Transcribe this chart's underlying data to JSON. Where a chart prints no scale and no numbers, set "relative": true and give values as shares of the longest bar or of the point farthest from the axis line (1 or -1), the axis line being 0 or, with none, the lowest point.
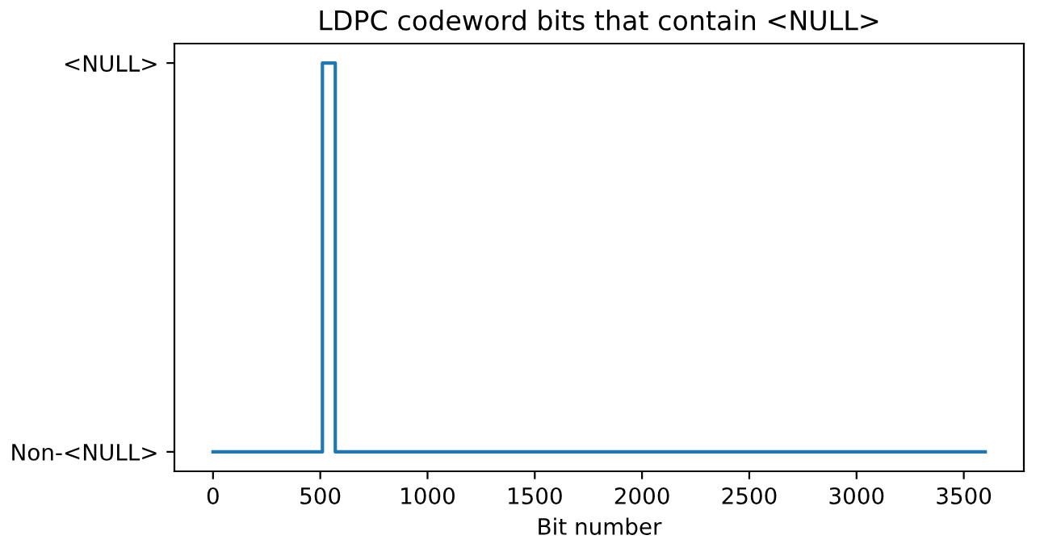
{
  "chart_data": {
    "type": "step",
    "title": "LDPC codeword bits that contain <NULL>",
    "xlabel": "Bit number",
    "x": [
      0,
      510,
      570,
      3600
    ],
    "series": [
      {
        "color": "#1f77b4",
        "values": [
          0,
          1,
          0,
          0
        ]
      }
    ],
    "xlim": [
      -180,
      3780
    ],
    "xticks": [
      0,
      500,
      1000,
      1500,
      2000,
      2500,
      3000,
      3500
    ],
    "relative": true,
    "y_categories": [
      "<NULL>",
      "Non-<NULL>"
    ],
    "grid": false,
    "legend": false
  }
}
